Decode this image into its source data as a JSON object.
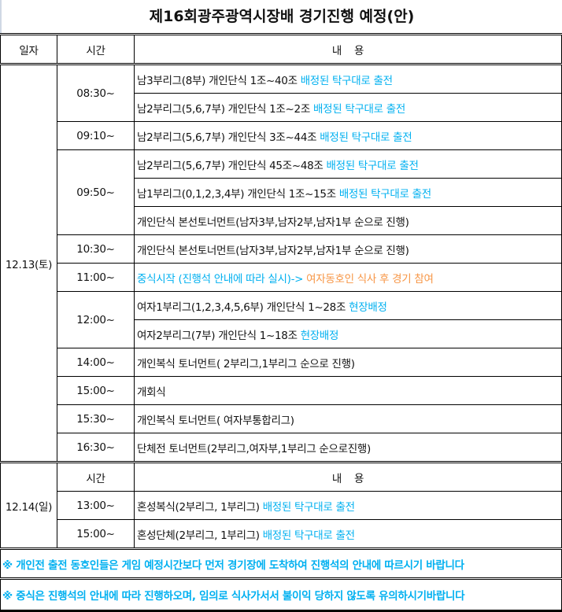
{
  "title": "제16회광주광역시장배 경기진행 예정(안)",
  "header": {
    "date": "일자",
    "time": "시간",
    "content": "내    용"
  },
  "colors": {
    "highlight_blue": "#00b0f0",
    "highlight_orange": "#f79646"
  },
  "day1": {
    "date": "12.13(토)",
    "groups": [
      {
        "time": "08:30~",
        "rows": [
          {
            "text": "남3부리그(8부) 개인단식 1조~40조 ",
            "blue": "배정된 탁구대로 출전"
          },
          {
            "text": "남2부리그(5,6,7부) 개인단식 1조~2조 ",
            "blue": "배정된 탁구대로 출전"
          }
        ]
      },
      {
        "time": "09:10~",
        "rows": [
          {
            "text": "남2부리그(5,6,7부) 개인단식 3조~44조 ",
            "blue": "배정된 탁구대로 출전"
          }
        ]
      },
      {
        "time": "09:50~",
        "rows": [
          {
            "text": "남2부리그(5,6,7부) 개인단식 45조~48조 ",
            "blue": "배정된 탁구대로 출전"
          },
          {
            "text": "남1부리그(0,1,2,3,4부) 개인단식 1조~15조 ",
            "blue": "배정된 탁구대로 출전"
          },
          {
            "text": "개인단식 본선토너먼트(남자3부,남자2부,남자1부 순으로 진행)"
          }
        ]
      },
      {
        "time": "10:30~",
        "rows": [
          {
            "text": "개인단식 본선토너먼트(남자3부,남자2부,남자1부 순으로 진행)"
          }
        ]
      },
      {
        "time": "11:00~",
        "rows": [
          {
            "blue": "중식시작 (진행석 안내에 따라 실시)-> ",
            "orange": "여자동호인 식사 후 경기 참여"
          }
        ]
      },
      {
        "time": "12:00~",
        "rows": [
          {
            "text": "여자1부리그(1,2,3,4,5,6부) 개인단식 1~28조 ",
            "blue": "현장배정"
          },
          {
            "text": "여자2부리그(7부) 개인단식 1~18조 ",
            "blue": "현장배정"
          }
        ]
      },
      {
        "time": "14:00~",
        "rows": [
          {
            "text": "개인복식 토너먼트( 2부리그,1부리그 순으로 진행)"
          }
        ]
      },
      {
        "time": "15:00~",
        "rows": [
          {
            "text": "개회식"
          }
        ]
      },
      {
        "time": "15:30~",
        "rows": [
          {
            "text": "개인복식 토너먼트( 여자부통합리그)"
          }
        ]
      },
      {
        "time": "16:30~",
        "rows": [
          {
            "text": "단체전 토너먼트(2부리그,여자부,1부리그 순으로진행)"
          }
        ]
      }
    ]
  },
  "day2": {
    "date": "12.14(일)",
    "header": {
      "time": "시간",
      "content": "내    용"
    },
    "groups": [
      {
        "time": "13:00~",
        "rows": [
          {
            "text": "혼성복식(2부리그, 1부리그) ",
            "blue": "배정된 탁구대로 출전"
          }
        ]
      },
      {
        "time": "15:00~",
        "rows": [
          {
            "text": "혼성단체(2부리그, 1부리그) ",
            "blue": "배정된 탁구대로 출전"
          }
        ]
      }
    ]
  },
  "notes": [
    "※ 개인전 출전 동호인들은 게임 예정시간보다 먼저 경기장에 도착하여 진행석의 안내에 따르시기 바랍니다",
    "※ 중식은 진행석의 안내에 따라 진행하오며, 임의로 식사가서서 불이익 당하지 않도록 유의하시기바랍니다"
  ]
}
